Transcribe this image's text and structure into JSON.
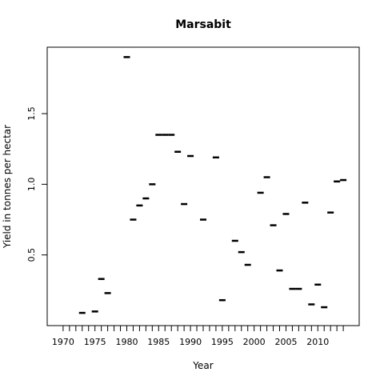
{
  "chart_data": {
    "type": "scatter",
    "title": "Marsabit",
    "xlabel": "Year",
    "ylabel": "Yield in tonnes per hectar",
    "xlim": [
      1967.5,
      2016.5
    ],
    "ylim": [
      0.0,
      1.97
    ],
    "x_ticks": [
      1970,
      1975,
      1980,
      1985,
      1990,
      1995,
      2000,
      2005,
      2010
    ],
    "x_minor_ticks": [
      1970,
      1971,
      1972,
      1973,
      1974,
      1975,
      1976,
      1977,
      1978,
      1979,
      1980,
      1981,
      1982,
      1983,
      1984,
      1985,
      1986,
      1987,
      1988,
      1989,
      1990,
      1991,
      1992,
      1993,
      1994,
      1995,
      1996,
      1997,
      1998,
      1999,
      2000,
      2001,
      2002,
      2003,
      2004,
      2005,
      2006,
      2007,
      2008,
      2009,
      2010,
      2011,
      2012,
      2013,
      2014
    ],
    "y_ticks": [
      0.5,
      1.0,
      1.5
    ],
    "y_tick_labels": [
      "0.5",
      "1.0",
      "1.5"
    ],
    "grid": false,
    "marker": "dash",
    "points": [
      {
        "x": 1973,
        "y": 0.09
      },
      {
        "x": 1975,
        "y": 0.1
      },
      {
        "x": 1976,
        "y": 0.33
      },
      {
        "x": 1977,
        "y": 0.23
      },
      {
        "x": 1980,
        "y": 1.9
      },
      {
        "x": 1981,
        "y": 0.75
      },
      {
        "x": 1982,
        "y": 0.85
      },
      {
        "x": 1983,
        "y": 0.9
      },
      {
        "x": 1984,
        "y": 1.0
      },
      {
        "x": 1985,
        "y": 1.35
      },
      {
        "x": 1986,
        "y": 1.35
      },
      {
        "x": 1987,
        "y": 1.35
      },
      {
        "x": 1988,
        "y": 1.23
      },
      {
        "x": 1989,
        "y": 0.86
      },
      {
        "x": 1990,
        "y": 1.2
      },
      {
        "x": 1992,
        "y": 0.75
      },
      {
        "x": 1994,
        "y": 1.19
      },
      {
        "x": 1995,
        "y": 0.18
      },
      {
        "x": 1997,
        "y": 0.6
      },
      {
        "x": 1998,
        "y": 0.52
      },
      {
        "x": 1999,
        "y": 0.43
      },
      {
        "x": 2001,
        "y": 0.94
      },
      {
        "x": 2002,
        "y": 1.05
      },
      {
        "x": 2003,
        "y": 0.71
      },
      {
        "x": 2004,
        "y": 0.39
      },
      {
        "x": 2005,
        "y": 0.79
      },
      {
        "x": 2006,
        "y": 0.26
      },
      {
        "x": 2007,
        "y": 0.26
      },
      {
        "x": 2008,
        "y": 0.87
      },
      {
        "x": 2009,
        "y": 0.15
      },
      {
        "x": 2010,
        "y": 0.29
      },
      {
        "x": 2011,
        "y": 0.13
      },
      {
        "x": 2012,
        "y": 0.8
      },
      {
        "x": 2013,
        "y": 1.02
      },
      {
        "x": 2014,
        "y": 1.03
      }
    ]
  }
}
